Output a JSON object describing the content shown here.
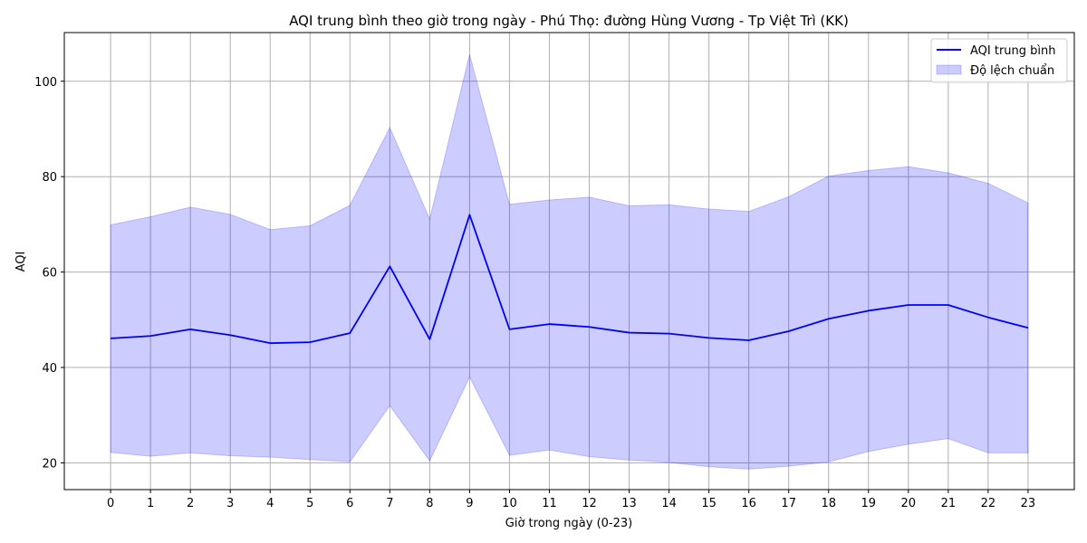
{
  "chart_data": {
    "type": "line",
    "title": "AQI trung bình theo giờ trong ngày - Phú Thọ: đường Hùng Vương - Tp Việt Trì (KK)",
    "xlabel": "Giờ trong ngày (0-23)",
    "ylabel": "AQI",
    "x": [
      0,
      1,
      2,
      3,
      4,
      5,
      6,
      7,
      8,
      9,
      10,
      11,
      12,
      13,
      14,
      15,
      16,
      17,
      18,
      19,
      20,
      21,
      22,
      23
    ],
    "xlim": [
      -1.16,
      24.16
    ],
    "ylim": [
      14.4,
      110.2
    ],
    "yticks": [
      20,
      40,
      60,
      80,
      100
    ],
    "grid": true,
    "legend_position": "top-right",
    "series": [
      {
        "name": "AQI trung bình",
        "color": "#0000ff",
        "values": [
          46.1,
          46.6,
          48.0,
          46.8,
          45.1,
          45.3,
          47.2,
          61.2,
          45.9,
          72.0,
          48.0,
          49.1,
          48.5,
          47.3,
          47.1,
          46.2,
          45.7,
          47.6,
          50.2,
          51.9,
          53.1,
          53.1,
          50.5,
          48.3
        ]
      },
      {
        "name": "Độ lệch chuẩn",
        "type": "band",
        "color": "#0000ff",
        "opacity": 0.2,
        "upper": [
          69.9,
          71.6,
          73.6,
          72.1,
          68.9,
          69.7,
          74.0,
          90.3,
          71.1,
          105.6,
          74.2,
          75.1,
          75.7,
          73.9,
          74.1,
          73.2,
          72.7,
          75.8,
          80.1,
          81.3,
          82.1,
          80.8,
          78.6,
          74.5
        ],
        "lower": [
          22.2,
          21.4,
          22.1,
          21.5,
          21.2,
          20.7,
          20.2,
          32.0,
          20.4,
          38.0,
          21.6,
          22.7,
          21.3,
          20.6,
          20.1,
          19.2,
          18.7,
          19.3,
          20.2,
          22.4,
          23.9,
          25.1,
          22.1,
          22.1
        ]
      }
    ]
  }
}
